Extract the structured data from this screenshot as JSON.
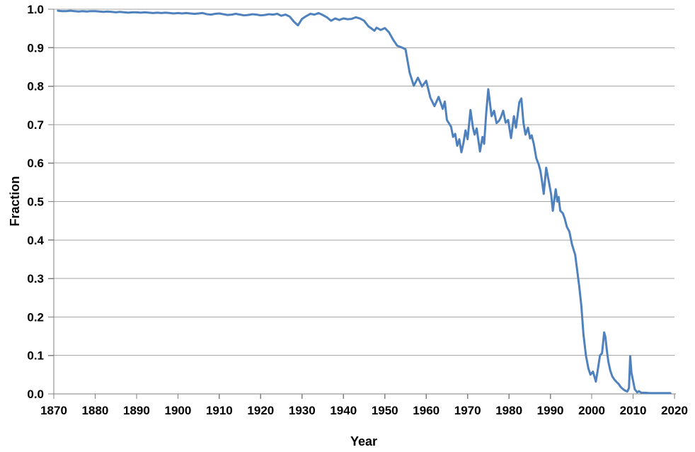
{
  "chart_data": {
    "type": "line",
    "title": "",
    "xlabel": "Year",
    "ylabel": "Fraction",
    "xlim": [
      1870,
      2020
    ],
    "ylim": [
      0.0,
      1.0
    ],
    "x_ticks": [
      1870,
      1880,
      1890,
      1900,
      1910,
      1920,
      1930,
      1940,
      1950,
      1960,
      1970,
      1980,
      1990,
      2000,
      2010,
      2020
    ],
    "x_tick_labels": [
      "1870",
      "1880",
      "1890",
      "1900",
      "1910",
      "1920",
      "1930",
      "1940",
      "1950",
      "1960",
      "1970",
      "1980",
      "1990",
      "2000",
      "2010",
      "2020"
    ],
    "y_ticks": [
      0.0,
      0.1,
      0.2,
      0.3,
      0.4,
      0.5,
      0.6,
      0.7,
      0.8,
      0.9,
      1.0
    ],
    "y_tick_labels": [
      "0.0",
      "0.1",
      "0.2",
      "0.3",
      "0.4",
      "0.5",
      "0.6",
      "0.7",
      "0.8",
      "0.9",
      "1.0"
    ],
    "grid": "horizontal-only",
    "legend": "none",
    "colors": {
      "line": "#4F81BD",
      "gridline": "#A6A6A6",
      "axis": "#808080",
      "text": "#000000",
      "background": "#FFFFFF"
    },
    "series": [
      {
        "name": "Fraction",
        "points": [
          [
            1871,
            0.996
          ],
          [
            1872,
            0.995
          ],
          [
            1873,
            0.995
          ],
          [
            1874,
            0.996
          ],
          [
            1875,
            0.995
          ],
          [
            1876,
            0.994
          ],
          [
            1877,
            0.995
          ],
          [
            1878,
            0.994
          ],
          [
            1879,
            0.995
          ],
          [
            1880,
            0.995
          ],
          [
            1881,
            0.994
          ],
          [
            1882,
            0.993
          ],
          [
            1883,
            0.994
          ],
          [
            1884,
            0.993
          ],
          [
            1885,
            0.992
          ],
          [
            1886,
            0.993
          ],
          [
            1887,
            0.992
          ],
          [
            1888,
            0.991
          ],
          [
            1889,
            0.992
          ],
          [
            1890,
            0.992
          ],
          [
            1891,
            0.991
          ],
          [
            1892,
            0.992
          ],
          [
            1893,
            0.991
          ],
          [
            1894,
            0.99
          ],
          [
            1895,
            0.991
          ],
          [
            1896,
            0.99
          ],
          [
            1897,
            0.991
          ],
          [
            1898,
            0.99
          ],
          [
            1899,
            0.989
          ],
          [
            1900,
            0.99
          ],
          [
            1901,
            0.989
          ],
          [
            1902,
            0.99
          ],
          [
            1903,
            0.989
          ],
          [
            1904,
            0.988
          ],
          [
            1905,
            0.989
          ],
          [
            1906,
            0.99
          ],
          [
            1907,
            0.987
          ],
          [
            1908,
            0.986
          ],
          [
            1909,
            0.988
          ],
          [
            1910,
            0.989
          ],
          [
            1911,
            0.987
          ],
          [
            1912,
            0.985
          ],
          [
            1913,
            0.986
          ],
          [
            1914,
            0.988
          ],
          [
            1915,
            0.986
          ],
          [
            1916,
            0.984
          ],
          [
            1917,
            0.985
          ],
          [
            1918,
            0.987
          ],
          [
            1919,
            0.986
          ],
          [
            1920,
            0.984
          ],
          [
            1921,
            0.985
          ],
          [
            1922,
            0.987
          ],
          [
            1923,
            0.986
          ],
          [
            1924,
            0.988
          ],
          [
            1925,
            0.983
          ],
          [
            1926,
            0.986
          ],
          [
            1927,
            0.981
          ],
          [
            1928,
            0.968
          ],
          [
            1929,
            0.958
          ],
          [
            1930,
            0.975
          ],
          [
            1931,
            0.982
          ],
          [
            1932,
            0.988
          ],
          [
            1933,
            0.986
          ],
          [
            1934,
            0.99
          ],
          [
            1935,
            0.985
          ],
          [
            1936,
            0.979
          ],
          [
            1937,
            0.97
          ],
          [
            1938,
            0.976
          ],
          [
            1939,
            0.972
          ],
          [
            1940,
            0.976
          ],
          [
            1941,
            0.974
          ],
          [
            1942,
            0.975
          ],
          [
            1943,
            0.979
          ],
          [
            1944,
            0.976
          ],
          [
            1945,
            0.97
          ],
          [
            1946,
            0.956
          ],
          [
            1947,
            0.948
          ],
          [
            1947.5,
            0.944
          ],
          [
            1948,
            0.952
          ],
          [
            1949,
            0.946
          ],
          [
            1950,
            0.951
          ],
          [
            1951,
            0.94
          ],
          [
            1952,
            0.921
          ],
          [
            1953,
            0.905
          ],
          [
            1954,
            0.901
          ],
          [
            1955,
            0.896
          ],
          [
            1956,
            0.835
          ],
          [
            1957,
            0.801
          ],
          [
            1958,
            0.822
          ],
          [
            1959,
            0.799
          ],
          [
            1960,
            0.814
          ],
          [
            1961,
            0.77
          ],
          [
            1962,
            0.748
          ],
          [
            1963,
            0.772
          ],
          [
            1964,
            0.741
          ],
          [
            1964.5,
            0.76
          ],
          [
            1965,
            0.712
          ],
          [
            1966,
            0.695
          ],
          [
            1966.5,
            0.668
          ],
          [
            1967,
            0.676
          ],
          [
            1967.5,
            0.645
          ],
          [
            1968,
            0.662
          ],
          [
            1968.5,
            0.628
          ],
          [
            1969,
            0.652
          ],
          [
            1969.5,
            0.685
          ],
          [
            1970,
            0.662
          ],
          [
            1970.7,
            0.738
          ],
          [
            1971.3,
            0.692
          ],
          [
            1971.7,
            0.674
          ],
          [
            1972.2,
            0.69
          ],
          [
            1973,
            0.63
          ],
          [
            1973.6,
            0.668
          ],
          [
            1974,
            0.65
          ],
          [
            1974.5,
            0.73
          ],
          [
            1975,
            0.792
          ],
          [
            1975.8,
            0.722
          ],
          [
            1976.4,
            0.736
          ],
          [
            1977,
            0.704
          ],
          [
            1977.6,
            0.71
          ],
          [
            1978,
            0.718
          ],
          [
            1978.6,
            0.736
          ],
          [
            1979.2,
            0.705
          ],
          [
            1979.8,
            0.712
          ],
          [
            1980.5,
            0.665
          ],
          [
            1981.2,
            0.722
          ],
          [
            1981.7,
            0.692
          ],
          [
            1982.5,
            0.758
          ],
          [
            1983,
            0.768
          ],
          [
            1983.5,
            0.705
          ],
          [
            1984,
            0.674
          ],
          [
            1984.6,
            0.692
          ],
          [
            1985.1,
            0.664
          ],
          [
            1985.5,
            0.672
          ],
          [
            1986,
            0.65
          ],
          [
            1986.6,
            0.613
          ],
          [
            1987.2,
            0.596
          ],
          [
            1987.6,
            0.58
          ],
          [
            1988,
            0.552
          ],
          [
            1988.4,
            0.52
          ],
          [
            1989,
            0.588
          ],
          [
            1989.7,
            0.548
          ],
          [
            1990.2,
            0.518
          ],
          [
            1990.6,
            0.476
          ],
          [
            1991.3,
            0.532
          ],
          [
            1991.7,
            0.5
          ],
          [
            1992,
            0.512
          ],
          [
            1992.4,
            0.476
          ],
          [
            1993,
            0.47
          ],
          [
            1993.5,
            0.455
          ],
          [
            1994,
            0.434
          ],
          [
            1994.6,
            0.422
          ],
          [
            1995.2,
            0.39
          ],
          [
            1995.7,
            0.372
          ],
          [
            1996,
            0.362
          ],
          [
            1996.5,
            0.32
          ],
          [
            1997,
            0.278
          ],
          [
            1997.5,
            0.228
          ],
          [
            1998,
            0.155
          ],
          [
            1998.6,
            0.1
          ],
          [
            1999.2,
            0.066
          ],
          [
            1999.7,
            0.05
          ],
          [
            2000.3,
            0.058
          ],
          [
            2001,
            0.032
          ],
          [
            2001.5,
            0.065
          ],
          [
            2002,
            0.1
          ],
          [
            2002.5,
            0.106
          ],
          [
            2003,
            0.16
          ],
          [
            2003.3,
            0.148
          ],
          [
            2003.7,
            0.11
          ],
          [
            2004,
            0.085
          ],
          [
            2004.5,
            0.06
          ],
          [
            2005,
            0.045
          ],
          [
            2005.5,
            0.037
          ],
          [
            2006,
            0.031
          ],
          [
            2006.5,
            0.026
          ],
          [
            2007,
            0.018
          ],
          [
            2007.5,
            0.013
          ],
          [
            2008,
            0.009
          ],
          [
            2008.6,
            0.006
          ],
          [
            2009,
            0.015
          ],
          [
            2009.3,
            0.098
          ],
          [
            2009.6,
            0.055
          ],
          [
            2010,
            0.034
          ],
          [
            2010.4,
            0.012
          ],
          [
            2011,
            0.004
          ],
          [
            2011.4,
            0.007
          ],
          [
            2012,
            0.003
          ],
          [
            2013,
            0.003
          ],
          [
            2014,
            0.002
          ],
          [
            2015,
            0.002
          ],
          [
            2016,
            0.002
          ],
          [
            2017,
            0.002
          ],
          [
            2018,
            0.002
          ],
          [
            2019,
            0.002
          ]
        ]
      }
    ]
  }
}
